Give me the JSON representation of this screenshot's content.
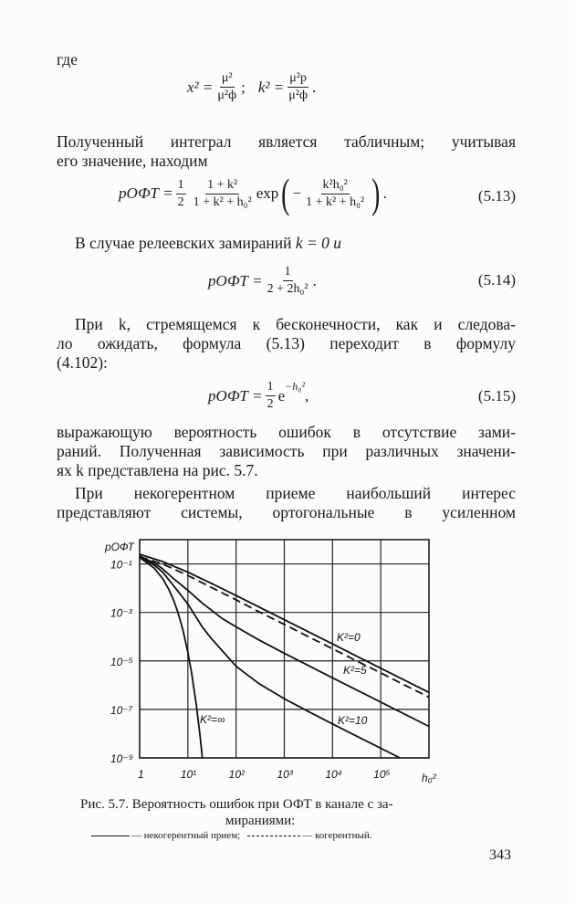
{
  "text": {
    "where": "где",
    "p1_l1": "Полученный интеграл является табличным; учитывая",
    "p1_l2": "его значение, находим",
    "p2_l1": "В случае релеевских замираний",
    "p2_eq": "k = 0 и",
    "p3_l1": "При k, стремящемся к бесконечности, как и следова-",
    "p3_l2": "ло ожидать, формула (5.13) переходит в формулу",
    "p3_l3": "(4.102):",
    "p4_l1": "выражающую вероятность ошибок в отсутствие зами-",
    "p4_l2": "раний. Полученная зависимость при различных значени-",
    "p4_l3": "ях k представлена на рис. 5.7.",
    "p5_l1": "При некогерентном приеме наибольший интерес",
    "p5_l2": "представляют системы, ортогональные в усиленном"
  },
  "equations": {
    "e1": {
      "lhs1": "x² =",
      "n1": "μ²",
      "d1": "μ²ф",
      "sep": ";",
      "lhs2": "k² =",
      "n2": "μ²р",
      "d2": "μ²ф",
      "end": "."
    },
    "e513": {
      "lhs": "pОФТ =",
      "half_n": "1",
      "half_d": "2",
      "n": "1 + k²",
      "d": "1 + k² + h₀²",
      "exp": "exp",
      "minus": "−",
      "en": "k²h₀²",
      "ed": "1 + k² + h₀²",
      "end": ".",
      "no": "(5.13)"
    },
    "e514": {
      "lhs": "pОФТ =",
      "n": "1",
      "d": "2 + 2h₀²",
      "end": ".",
      "no": "(5.14)"
    },
    "e515": {
      "lhs": "pОФТ =",
      "half_n": "1",
      "half_d": "2",
      "e": "e",
      "pow": "−h₀²",
      "end": ",",
      "no": "(5.15)"
    }
  },
  "caption": {
    "l1": "Рис. 5.7. Вероятность ошибок при ОФТ в канале с за-",
    "l2": "мираниями:",
    "l3_solid": "— некогерентный прием;",
    "l3_dashed": "— когерентный."
  },
  "page_number": "343",
  "chart_data": {
    "type": "line",
    "xscale": "log",
    "yscale": "log",
    "xlim": [
      1,
      1000000
    ],
    "ylim": [
      1e-09,
      1
    ],
    "grid": true,
    "ylabel": "pОФТ",
    "xlabel": "h₀²",
    "xticks": [
      {
        "v": 1,
        "label": "1"
      },
      {
        "v": 10,
        "label": "10¹"
      },
      {
        "v": 100,
        "label": "10²"
      },
      {
        "v": 1000,
        "label": "10³"
      },
      {
        "v": 10000,
        "label": "10⁴"
      },
      {
        "v": 100000,
        "label": "10⁵"
      }
    ],
    "yticks": [
      {
        "v": 0.1,
        "label": "10⁻¹"
      },
      {
        "v": 0.001,
        "label": "10⁻³"
      },
      {
        "v": 1e-05,
        "label": "10⁻⁵"
      },
      {
        "v": 1e-07,
        "label": "10⁻⁷"
      },
      {
        "v": 1e-09,
        "label": "10⁻⁹"
      }
    ],
    "series": [
      {
        "name": "K²=0",
        "style": "solid",
        "x": [
          1,
          3,
          10,
          30,
          100,
          300,
          1000,
          3000,
          10000,
          30000,
          100000,
          300000,
          1000000
        ],
        "y": [
          0.25,
          0.125,
          0.0455,
          0.0161,
          0.00495,
          0.00166,
          0.0005,
          0.000167,
          5e-05,
          1.67e-05,
          5e-06,
          1.67e-06,
          5e-07
        ]
      },
      {
        "name": "",
        "style": "dashed",
        "x": [
          1,
          3,
          10,
          30,
          100,
          300,
          1000,
          3000,
          10000,
          30000,
          100000,
          300000,
          1000000
        ],
        "y": [
          0.2,
          0.1,
          0.033,
          0.011,
          0.0033,
          0.00105,
          0.00032,
          0.000105,
          3.2e-05,
          1.05e-05,
          3.2e-06,
          1.05e-06,
          3.2e-07
        ]
      },
      {
        "name": "K²=5",
        "style": "solid",
        "x": [
          1,
          2,
          3,
          5,
          10,
          20,
          30,
          50,
          100,
          300,
          1000,
          10000,
          100000,
          1000000
        ],
        "y": [
          0.21,
          0.11,
          0.063,
          0.025,
          0.0082,
          0.0024,
          0.00129,
          0.00058,
          0.000253,
          7.3e-05,
          2.07e-05,
          2e-06,
          2e-07,
          2e-08
        ]
      },
      {
        "name": "K²=10",
        "style": "solid",
        "x": [
          1,
          2,
          3,
          5,
          10,
          20,
          30,
          50,
          100,
          300,
          1000,
          3000,
          10000,
          30000,
          100000,
          250000
        ],
        "y": [
          0.199,
          0.09,
          0.046,
          0.013,
          0.00224,
          0.00025,
          8.9e-05,
          2.8e-05,
          6e-06,
          1.14e-06,
          2.76e-07,
          8.6e-08,
          2.52e-08,
          8.3e-09,
          2.5e-09,
          1e-09
        ]
      },
      {
        "name": "K²=∞",
        "style": "solid",
        "x": [
          1,
          2,
          3,
          4,
          5,
          6,
          7,
          8,
          10,
          12,
          15,
          18,
          20
        ],
        "y": [
          0.184,
          0.0677,
          0.0249,
          0.0092,
          0.0034,
          0.00124,
          0.00046,
          0.000168,
          2.27e-05,
          3.1e-06,
          1.53e-07,
          7.6e-09,
          1e-09
        ]
      }
    ],
    "annotations": [
      "K²=0",
      "K²=5",
      "K²=10",
      "K²=∞"
    ],
    "colors": {
      "line": "#111111",
      "grid": "#222222"
    }
  }
}
